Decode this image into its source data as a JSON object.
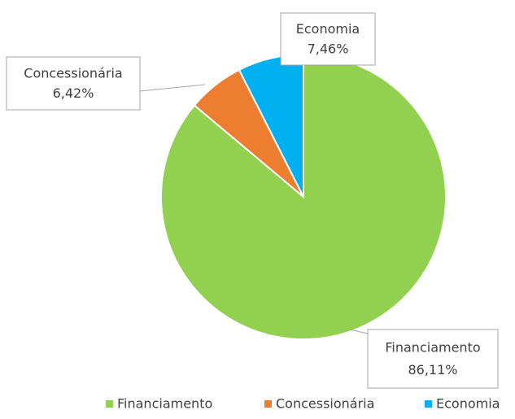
{
  "chart_data": {
    "type": "pie",
    "categories": [
      "Financiamento",
      "Concessionária",
      "Economia"
    ],
    "values": [
      86.11,
      6.42,
      7.46
    ],
    "value_labels": [
      "86,11%",
      "6,42%",
      "7,46%"
    ],
    "colors": [
      "#92d050",
      "#ed7d31",
      "#00b0f0"
    ],
    "legend": "bottom"
  }
}
